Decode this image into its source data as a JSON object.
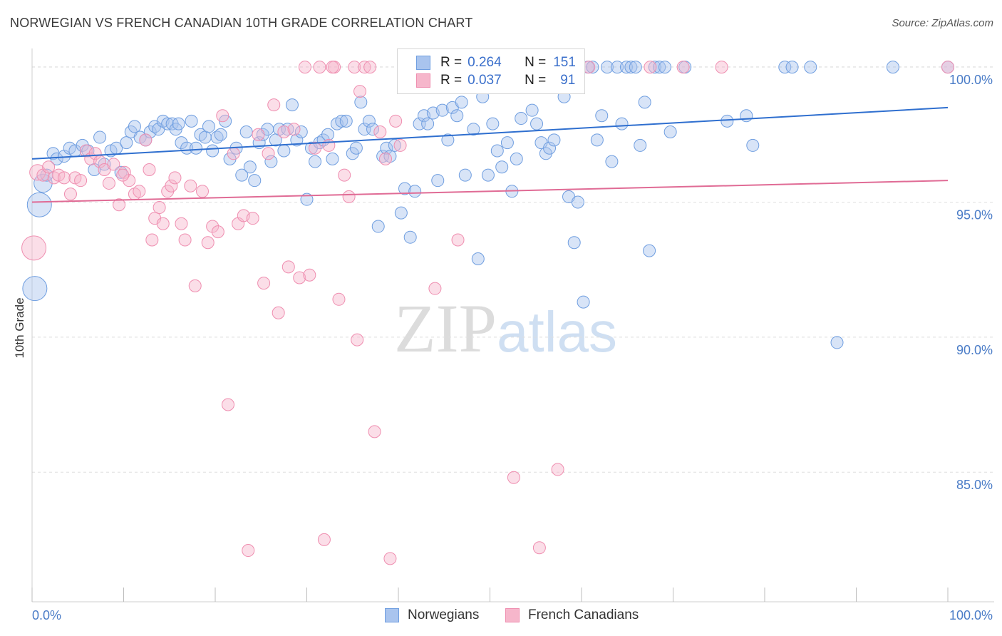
{
  "title": "NORWEGIAN VS FRENCH CANADIAN 10TH GRADE CORRELATION CHART",
  "source": "Source: ZipAtlas.com",
  "watermark": {
    "zip": "ZIP",
    "atlas": "atlas"
  },
  "legend_top": {
    "rows": [
      {
        "r_key": "R =",
        "r_value": "0.264",
        "n_key": "N =",
        "n_value": "151",
        "color": "#a9c4ee"
      },
      {
        "r_key": "R =",
        "r_value": "0.037",
        "n_key": "N =",
        "n_value": "91",
        "color": "#f6b6cb"
      }
    ]
  },
  "legend_bottom": {
    "items": [
      {
        "label": "Norwegians",
        "color": "#a9c4ee"
      },
      {
        "label": "French Canadians",
        "color": "#f6b6cb"
      }
    ]
  },
  "chart_data": {
    "type": "scatter",
    "title": "NORWEGIAN VS FRENCH CANADIAN 10TH GRADE CORRELATION CHART",
    "xlabel": "",
    "ylabel": "10th Grade",
    "xlim": [
      0,
      100
    ],
    "ylim": [
      80.2,
      100.9
    ],
    "x_tick_labels": [
      "0.0%",
      "100.0%"
    ],
    "y_ticks": [
      85,
      90,
      95,
      100
    ],
    "y_tick_labels": [
      "85.0%",
      "90.0%",
      "95.0%",
      "100.0%"
    ],
    "grid": true,
    "legend": "bottom",
    "series": [
      {
        "name": "Norwegians",
        "color": "#6f9ee0",
        "fill": "#a9c4ee",
        "trend": {
          "x": [
            0,
            100
          ],
          "y": [
            96.6,
            98.5
          ],
          "color": "#2f6fcf"
        },
        "points": [
          [
            0.3,
            91.8,
            2
          ],
          [
            0.8,
            94.9,
            2
          ],
          [
            1.2,
            95.7,
            1.5
          ],
          [
            1.6,
            96.0,
            1
          ],
          [
            2.3,
            96.8,
            1
          ],
          [
            2.7,
            96.6,
            1
          ],
          [
            3.5,
            96.7,
            1
          ],
          [
            4.1,
            97.0,
            1
          ],
          [
            4.7,
            96.9,
            1
          ],
          [
            5.5,
            97.1,
            1
          ],
          [
            6.1,
            96.9,
            1
          ],
          [
            6.8,
            96.2,
            1
          ],
          [
            7.4,
            97.4,
            1
          ],
          [
            7.9,
            96.4,
            1
          ],
          [
            8.6,
            96.9,
            1
          ],
          [
            9.2,
            97.0,
            1
          ],
          [
            9.7,
            96.1,
            1
          ],
          [
            10.3,
            97.2,
            1
          ],
          [
            10.8,
            97.6,
            1
          ],
          [
            11.2,
            97.8,
            1
          ],
          [
            11.8,
            97.4,
            1
          ],
          [
            12.4,
            97.3,
            1
          ],
          [
            12.9,
            97.6,
            1
          ],
          [
            13.4,
            97.8,
            1
          ],
          [
            13.8,
            97.7,
            1
          ],
          [
            14.3,
            98.0,
            1
          ],
          [
            14.8,
            97.9,
            1
          ],
          [
            15.3,
            97.9,
            1
          ],
          [
            15.7,
            97.7,
            1
          ],
          [
            16.0,
            97.9,
            1
          ],
          [
            16.3,
            97.2,
            1
          ],
          [
            16.9,
            97.0,
            1
          ],
          [
            17.4,
            98.0,
            1
          ],
          [
            17.9,
            97.0,
            1
          ],
          [
            18.4,
            97.5,
            1
          ],
          [
            18.9,
            97.4,
            1
          ],
          [
            19.3,
            97.8,
            1
          ],
          [
            19.7,
            96.9,
            1
          ],
          [
            20.2,
            97.4,
            1
          ],
          [
            20.6,
            97.5,
            1
          ],
          [
            21.1,
            98.0,
            1
          ],
          [
            21.6,
            96.6,
            1
          ],
          [
            22.3,
            97.0,
            1
          ],
          [
            22.9,
            96.0,
            1
          ],
          [
            23.4,
            97.6,
            1
          ],
          [
            23.8,
            96.3,
            1
          ],
          [
            24.3,
            95.8,
            1
          ],
          [
            24.8,
            97.2,
            1
          ],
          [
            25.2,
            97.5,
            1
          ],
          [
            25.7,
            97.7,
            1
          ],
          [
            26.1,
            96.5,
            1
          ],
          [
            26.6,
            97.3,
            1
          ],
          [
            27.0,
            97.7,
            1
          ],
          [
            27.5,
            96.9,
            1
          ],
          [
            27.9,
            97.7,
            1
          ],
          [
            28.4,
            98.6,
            1
          ],
          [
            28.9,
            97.3,
            1
          ],
          [
            29.4,
            97.6,
            1
          ],
          [
            30.0,
            95.1,
            1
          ],
          [
            30.5,
            97.0,
            1
          ],
          [
            30.9,
            96.5,
            1
          ],
          [
            31.4,
            97.2,
            1
          ],
          [
            31.8,
            97.3,
            1
          ],
          [
            32.3,
            97.5,
            1
          ],
          [
            32.8,
            96.6,
            1
          ],
          [
            33.3,
            97.9,
            1
          ],
          [
            33.8,
            98.0,
            1
          ],
          [
            34.3,
            98.0,
            1
          ],
          [
            35.0,
            96.8,
            1
          ],
          [
            35.4,
            97.0,
            1
          ],
          [
            35.9,
            98.7,
            1
          ],
          [
            36.3,
            97.7,
            1
          ],
          [
            36.8,
            98.0,
            1
          ],
          [
            37.2,
            97.7,
            1
          ],
          [
            37.8,
            94.1,
            1
          ],
          [
            38.3,
            96.7,
            1
          ],
          [
            38.7,
            97.0,
            1
          ],
          [
            39.1,
            96.7,
            1
          ],
          [
            39.6,
            97.1,
            1
          ],
          [
            40.3,
            94.6,
            1
          ],
          [
            40.7,
            95.5,
            1
          ],
          [
            41.3,
            93.7,
            1
          ],
          [
            41.8,
            95.4,
            1
          ],
          [
            42.3,
            97.9,
            1
          ],
          [
            42.8,
            98.2,
            1
          ],
          [
            43.2,
            97.9,
            1
          ],
          [
            43.8,
            98.3,
            1
          ],
          [
            44.3,
            95.8,
            1
          ],
          [
            44.8,
            98.4,
            1
          ],
          [
            45.4,
            97.3,
            1
          ],
          [
            45.9,
            98.5,
            1
          ],
          [
            46.4,
            98.2,
            1
          ],
          [
            46.9,
            98.7,
            1
          ],
          [
            47.3,
            96.0,
            1
          ],
          [
            47.7,
            100.0,
            1
          ],
          [
            48.2,
            97.7,
            1
          ],
          [
            48.7,
            92.9,
            1
          ],
          [
            49.2,
            98.9,
            1
          ],
          [
            49.8,
            96.0,
            1
          ],
          [
            50.3,
            97.9,
            1
          ],
          [
            50.8,
            96.9,
            1
          ],
          [
            51.3,
            96.3,
            1
          ],
          [
            51.9,
            97.2,
            1
          ],
          [
            52.4,
            95.4,
            1
          ],
          [
            52.9,
            96.6,
            1
          ],
          [
            53.4,
            98.1,
            1
          ],
          [
            54.0,
            99.6,
            1
          ],
          [
            54.6,
            98.4,
            1
          ],
          [
            55.1,
            97.9,
            1
          ],
          [
            55.6,
            97.2,
            1
          ],
          [
            56.1,
            96.8,
            1
          ],
          [
            56.5,
            97.0,
            1
          ],
          [
            57.0,
            97.3,
            1
          ],
          [
            57.5,
            100.0,
            1
          ],
          [
            58.1,
            98.9,
            1
          ],
          [
            58.6,
            95.2,
            1
          ],
          [
            59.2,
            93.5,
            1
          ],
          [
            59.6,
            95.0,
            1
          ],
          [
            60.2,
            91.3,
            1
          ],
          [
            60.7,
            100.0,
            1
          ],
          [
            61.2,
            100.0,
            1
          ],
          [
            61.7,
            97.3,
            1
          ],
          [
            62.2,
            98.2,
            1
          ],
          [
            62.8,
            100.0,
            1
          ],
          [
            63.3,
            96.5,
            1
          ],
          [
            63.9,
            100.0,
            1
          ],
          [
            64.4,
            97.9,
            1
          ],
          [
            64.9,
            100.0,
            1
          ],
          [
            65.4,
            100.0,
            1
          ],
          [
            65.9,
            100.0,
            1
          ],
          [
            66.4,
            97.1,
            1
          ],
          [
            66.9,
            98.7,
            1
          ],
          [
            67.4,
            93.2,
            1
          ],
          [
            68.0,
            100.0,
            1
          ],
          [
            68.5,
            100.0,
            1
          ],
          [
            69.1,
            100.0,
            1
          ],
          [
            69.7,
            97.6,
            1
          ],
          [
            71.3,
            100.0,
            1
          ],
          [
            75.9,
            98.0,
            1
          ],
          [
            78.0,
            98.2,
            1
          ],
          [
            78.7,
            97.1,
            1
          ],
          [
            82.2,
            100.0,
            1
          ],
          [
            83.0,
            100.0,
            1
          ],
          [
            85.0,
            100.0,
            1
          ],
          [
            87.9,
            89.8,
            1
          ],
          [
            94.0,
            100.0,
            1
          ],
          [
            100.0,
            100.0,
            1
          ]
        ]
      },
      {
        "name": "French Canadians",
        "color": "#ef8eb0",
        "fill": "#f6b6cb",
        "trend": {
          "x": [
            0,
            100
          ],
          "y": [
            95.0,
            95.8
          ],
          "color": "#e06b95"
        },
        "points": [
          [
            0.2,
            93.3,
            2
          ],
          [
            0.6,
            96.1,
            1.3
          ],
          [
            1.2,
            96.0,
            1
          ],
          [
            1.8,
            96.3,
            1
          ],
          [
            2.4,
            95.9,
            1
          ],
          [
            2.9,
            96.0,
            1
          ],
          [
            3.5,
            95.9,
            1
          ],
          [
            4.2,
            95.3,
            1
          ],
          [
            4.7,
            95.9,
            1
          ],
          [
            5.3,
            95.8,
            1
          ],
          [
            5.9,
            96.9,
            1
          ],
          [
            6.4,
            96.6,
            1
          ],
          [
            6.9,
            96.8,
            1
          ],
          [
            7.4,
            96.5,
            1
          ],
          [
            7.9,
            96.2,
            1
          ],
          [
            8.4,
            95.7,
            1
          ],
          [
            8.9,
            96.4,
            1
          ],
          [
            9.5,
            94.9,
            1
          ],
          [
            10.1,
            96.1,
            1
          ],
          [
            10.6,
            95.8,
            1
          ],
          [
            11.2,
            95.3,
            1
          ],
          [
            11.7,
            95.4,
            1
          ],
          [
            12.4,
            97.3,
            1
          ],
          [
            12.8,
            96.2,
            1
          ],
          [
            13.1,
            93.6,
            1
          ],
          [
            13.4,
            94.4,
            1
          ],
          [
            13.9,
            94.8,
            1
          ],
          [
            14.3,
            94.2,
            1
          ],
          [
            14.8,
            95.4,
            1
          ],
          [
            15.2,
            95.6,
            1
          ],
          [
            15.6,
            95.9,
            1
          ],
          [
            16.3,
            94.2,
            1
          ],
          [
            16.7,
            93.6,
            1
          ],
          [
            17.3,
            95.6,
            1
          ],
          [
            17.8,
            91.9,
            1
          ],
          [
            18.6,
            95.4,
            1
          ],
          [
            19.2,
            93.5,
            1
          ],
          [
            19.7,
            94.1,
            1
          ],
          [
            20.3,
            93.9,
            1
          ],
          [
            20.8,
            98.2,
            1
          ],
          [
            21.4,
            87.5,
            1
          ],
          [
            22.0,
            96.8,
            1
          ],
          [
            22.5,
            94.2,
            1
          ],
          [
            23.1,
            94.5,
            1
          ],
          [
            23.6,
            82.1,
            1
          ],
          [
            24.1,
            94.4,
            1
          ],
          [
            24.7,
            97.5,
            1
          ],
          [
            25.3,
            92.0,
            1
          ],
          [
            25.8,
            96.8,
            1
          ],
          [
            26.4,
            98.6,
            1
          ],
          [
            26.9,
            90.9,
            1
          ],
          [
            27.5,
            97.6,
            1
          ],
          [
            28.0,
            92.6,
            1
          ],
          [
            28.6,
            97.7,
            1
          ],
          [
            29.2,
            92.2,
            1
          ],
          [
            29.8,
            100.0,
            1
          ],
          [
            30.3,
            92.3,
            1
          ],
          [
            30.9,
            97.0,
            1
          ],
          [
            31.4,
            100.0,
            1
          ],
          [
            31.9,
            82.5,
            1
          ],
          [
            32.4,
            97.1,
            1
          ],
          [
            33.0,
            100.0,
            1
          ],
          [
            33.5,
            91.4,
            1
          ],
          [
            34.1,
            96.0,
            1
          ],
          [
            34.6,
            95.2,
            1
          ],
          [
            35.2,
            100.0,
            1
          ],
          [
            35.8,
            99.1,
            1
          ],
          [
            36.3,
            100.0,
            1
          ],
          [
            36.9,
            100.0,
            1
          ],
          [
            37.4,
            86.5,
            1
          ],
          [
            38.0,
            97.6,
            1
          ],
          [
            38.6,
            96.6,
            1
          ],
          [
            39.1,
            81.8,
            1
          ],
          [
            39.7,
            98.0,
            1
          ],
          [
            40.2,
            97.1,
            1
          ],
          [
            40.8,
            100.0,
            1
          ],
          [
            41.4,
            100.0,
            1
          ],
          [
            44.0,
            91.8,
            1
          ],
          [
            46.5,
            93.6,
            1
          ],
          [
            48.0,
            100.0,
            1
          ],
          [
            52.6,
            84.8,
            1
          ],
          [
            55.4,
            82.2,
            1
          ],
          [
            57.4,
            85.1,
            1
          ],
          [
            71.1,
            100.0,
            1
          ],
          [
            75.3,
            100.0,
            1
          ],
          [
            35.5,
            89.9,
            1
          ],
          [
            32.8,
            100.0,
            1
          ],
          [
            100.0,
            100.0,
            1
          ],
          [
            67.5,
            100.0,
            1
          ],
          [
            60.8,
            100.0,
            1
          ],
          [
            9.9,
            96.0,
            1
          ]
        ]
      }
    ]
  }
}
